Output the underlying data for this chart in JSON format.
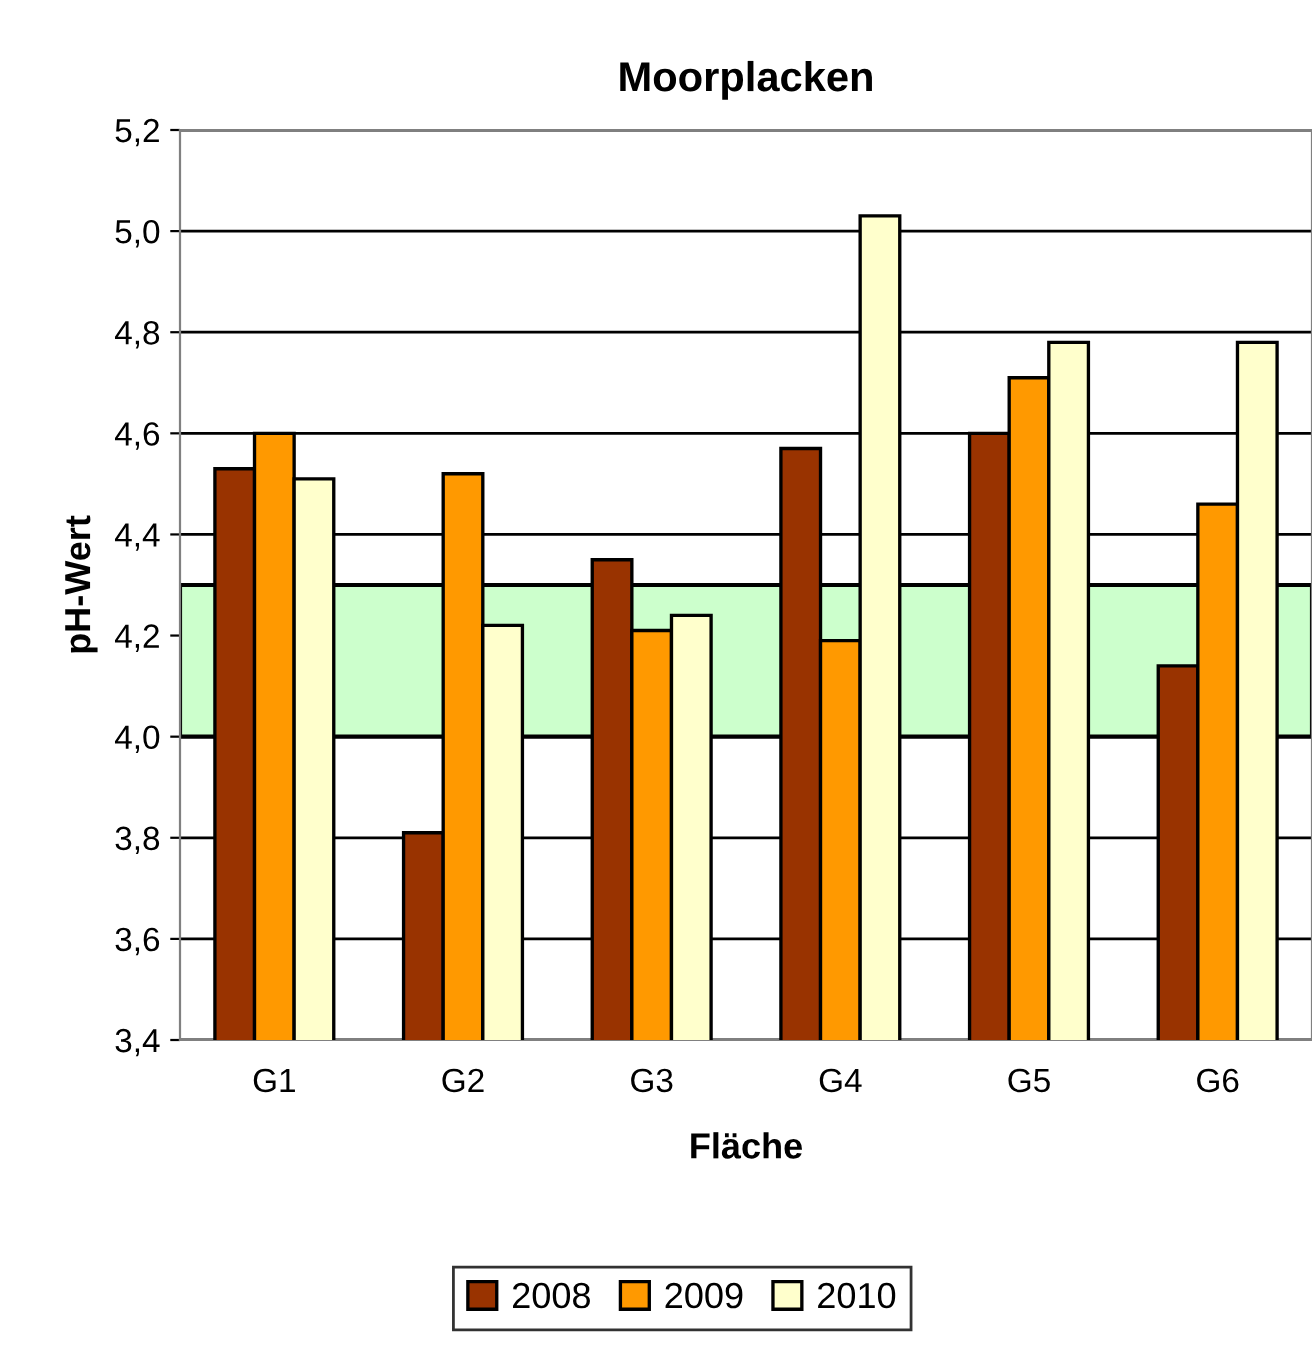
{
  "chart_data": {
    "type": "bar",
    "title": "Moorplacken",
    "xlabel": "Fläche",
    "ylabel": "pH-Wert",
    "categories": [
      "G1",
      "G2",
      "G3",
      "G4",
      "G5",
      "G6"
    ],
    "series": [
      {
        "name": "2008",
        "color": "#993300",
        "values": [
          4.53,
          3.81,
          4.35,
          4.57,
          4.6,
          4.14
        ]
      },
      {
        "name": "2009",
        "color": "#ff9900",
        "values": [
          4.6,
          4.52,
          4.21,
          4.19,
          4.71,
          4.46
        ]
      },
      {
        "name": "2010",
        "color": "#ffffcc",
        "values": [
          4.51,
          4.22,
          4.24,
          5.03,
          4.78,
          4.78
        ]
      }
    ],
    "ylim": [
      3.4,
      5.2
    ],
    "yticks": [
      {
        "value": 3.4,
        "label": "3,4"
      },
      {
        "value": 3.6,
        "label": "3,6"
      },
      {
        "value": 3.8,
        "label": "3,8"
      },
      {
        "value": 4.0,
        "label": "4,0"
      },
      {
        "value": 4.2,
        "label": "4,2"
      },
      {
        "value": 4.4,
        "label": "4,4"
      },
      {
        "value": 4.6,
        "label": "4,6"
      },
      {
        "value": 4.8,
        "label": "4,8"
      },
      {
        "value": 5.0,
        "label": "5,0"
      },
      {
        "value": 5.2,
        "label": "5,2"
      }
    ],
    "bands": [
      {
        "axis": "y",
        "from": 4.0,
        "to": 4.3,
        "color": "#ccffcc"
      }
    ],
    "grid": "y",
    "legend": "bottom"
  }
}
